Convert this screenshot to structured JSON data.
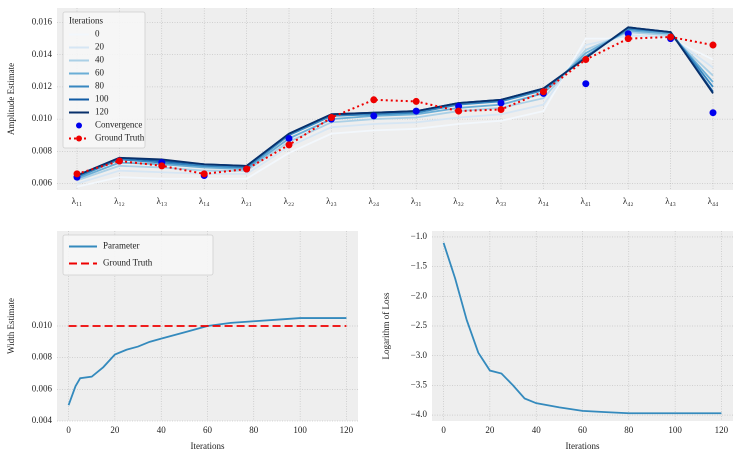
{
  "chart_data": [
    {
      "type": "line",
      "ylabel": "Amplitude Estimate",
      "categories": [
        "λ₁₁",
        "λ₁₂",
        "λ₁₃",
        "λ₁₄",
        "λ₂₁",
        "λ₂₂",
        "λ₂₃",
        "λ₂₄",
        "λ₃₁",
        "λ₃₂",
        "λ₃₃",
        "λ₃₄",
        "λ₄₁",
        "λ₄₂",
        "λ₄₃",
        "λ₄₄"
      ],
      "ylim": [
        0.0056,
        0.0169
      ],
      "yticks": [
        0.006,
        0.008,
        {
          "value": 0.01,
          "label": "0.010"
        },
        0.012,
        0.014,
        0.016
      ],
      "grid": true,
      "legend": "upper left",
      "legend_title": "Iterations",
      "series": [
        {
          "name": "0",
          "color": "#f2f7fc",
          "linestyle": "solid",
          "values": [
            0.0058,
            0.0064,
            0.0063,
            0.0063,
            0.0063,
            0.0079,
            0.0091,
            0.0093,
            0.0094,
            0.0097,
            0.0099,
            0.0105,
            0.015,
            0.015,
            0.015,
            0.0137
          ]
        },
        {
          "name": "20",
          "color": "#d6e6f4",
          "linestyle": "solid",
          "values": [
            0.006,
            0.0068,
            0.0067,
            0.0066,
            0.0066,
            0.0083,
            0.0095,
            0.0097,
            0.0098,
            0.0101,
            0.0103,
            0.0109,
            0.0146,
            0.0152,
            0.0151,
            0.0132
          ]
        },
        {
          "name": "40",
          "color": "#abd0e6",
          "linestyle": "solid",
          "values": [
            0.0062,
            0.0071,
            0.007,
            0.0068,
            0.0068,
            0.0086,
            0.0098,
            0.01,
            0.0101,
            0.0105,
            0.0107,
            0.0113,
            0.0143,
            0.0154,
            0.0152,
            0.0127
          ]
        },
        {
          "name": "60",
          "color": "#6aaed6",
          "linestyle": "solid",
          "values": [
            0.0063,
            0.0073,
            0.0072,
            0.007,
            0.0069,
            0.0088,
            0.01,
            0.0102,
            0.0103,
            0.0107,
            0.0109,
            0.0116,
            0.0141,
            0.0155,
            0.0153,
            0.0123
          ]
        },
        {
          "name": "80",
          "color": "#3787c0",
          "linestyle": "solid",
          "values": [
            0.0064,
            0.0075,
            0.0073,
            0.0071,
            0.007,
            0.009,
            0.0102,
            0.0103,
            0.0104,
            0.0109,
            0.0111,
            0.0118,
            0.0139,
            0.0156,
            0.0154,
            0.012
          ]
        },
        {
          "name": "100",
          "color": "#105ba4",
          "linestyle": "solid",
          "values": [
            0.0065,
            0.0076,
            0.0074,
            0.0072,
            0.0071,
            0.0091,
            0.0103,
            0.0104,
            0.0105,
            0.011,
            0.0112,
            0.0119,
            0.0138,
            0.0157,
            0.0154,
            0.0117
          ]
        },
        {
          "name": "120",
          "color": "#08306b",
          "linestyle": "solid",
          "values": [
            0.0065,
            0.0076,
            0.0075,
            0.0072,
            0.0071,
            0.0091,
            0.0103,
            0.0104,
            0.0105,
            0.011,
            0.0112,
            0.0119,
            0.0138,
            0.0157,
            0.0154,
            0.0116
          ]
        },
        {
          "name": "Convergence",
          "color": "#0000ee",
          "linestyle": "none",
          "marker": "o",
          "values": [
            0.0064,
            0.0074,
            0.0073,
            0.0065,
            0.0069,
            0.0088,
            0.01,
            0.0102,
            0.0105,
            0.0108,
            0.011,
            0.0116,
            0.0122,
            0.0153,
            0.015,
            0.0104
          ]
        },
        {
          "name": "Ground Truth",
          "color": "#ee0000",
          "linestyle": "dotted",
          "marker": "o",
          "values": [
            0.0066,
            0.0074,
            0.0071,
            0.0066,
            0.0069,
            0.0084,
            0.0101,
            0.0112,
            0.0111,
            0.0105,
            0.0106,
            0.0117,
            0.0137,
            0.015,
            0.0151,
            0.0146
          ]
        }
      ]
    },
    {
      "type": "line",
      "xlabel": "Iterations",
      "ylabel": "Width Estimate",
      "xlim": [
        -5,
        125
      ],
      "xticks": [
        0,
        20,
        40,
        60,
        80,
        100,
        120
      ],
      "ylim": [
        0.004,
        0.016
      ],
      "yticks": [
        0.004,
        0.006,
        0.008,
        {
          "value": 0.01,
          "label": "0.010"
        }
      ],
      "grid": true,
      "legend": "upper left",
      "series": [
        {
          "name": "Parameter",
          "color": "#348abd",
          "linestyle": "solid",
          "x": [
            0,
            3,
            5,
            10,
            15,
            20,
            25,
            30,
            35,
            40,
            50,
            60,
            70,
            80,
            90,
            100,
            110,
            120
          ],
          "values": [
            0.005,
            0.0062,
            0.0067,
            0.0068,
            0.0074,
            0.0082,
            0.0085,
            0.0087,
            0.009,
            0.0092,
            0.0096,
            0.01,
            0.0102,
            0.0103,
            0.0104,
            0.0105,
            0.0105,
            0.0105
          ]
        },
        {
          "name": "Ground Truth",
          "color": "#ee0000",
          "linestyle": "dashed",
          "x": [
            0,
            120
          ],
          "values": [
            0.01,
            0.01
          ]
        }
      ]
    },
    {
      "type": "line",
      "xlabel": "Iterations",
      "ylabel": "Logarithm of Loss",
      "xlim": [
        -5,
        125
      ],
      "xticks": [
        0,
        20,
        40,
        60,
        80,
        100,
        120
      ],
      "ylim": [
        -4.1,
        -0.9
      ],
      "yticks": [
        {
          "value": -4.0,
          "label": "−4.0"
        },
        {
          "value": -3.5,
          "label": "−3.5"
        },
        {
          "value": -3.0,
          "label": "−3.0"
        },
        {
          "value": -2.5,
          "label": "−2.5"
        },
        {
          "value": -2.0,
          "label": "−2.0"
        },
        {
          "value": -1.5,
          "label": "−1.5"
        },
        {
          "value": -1.0,
          "label": "−1.0"
        }
      ],
      "grid": true,
      "series": [
        {
          "color": "#348abd",
          "linestyle": "solid",
          "x": [
            0,
            5,
            10,
            15,
            20,
            25,
            30,
            35,
            40,
            50,
            60,
            70,
            80,
            100,
            120
          ],
          "values": [
            -1.1,
            -1.7,
            -2.4,
            -2.95,
            -3.25,
            -3.3,
            -3.5,
            -3.72,
            -3.8,
            -3.87,
            -3.93,
            -3.95,
            -3.97,
            -3.97,
            -3.97
          ]
        }
      ]
    }
  ]
}
